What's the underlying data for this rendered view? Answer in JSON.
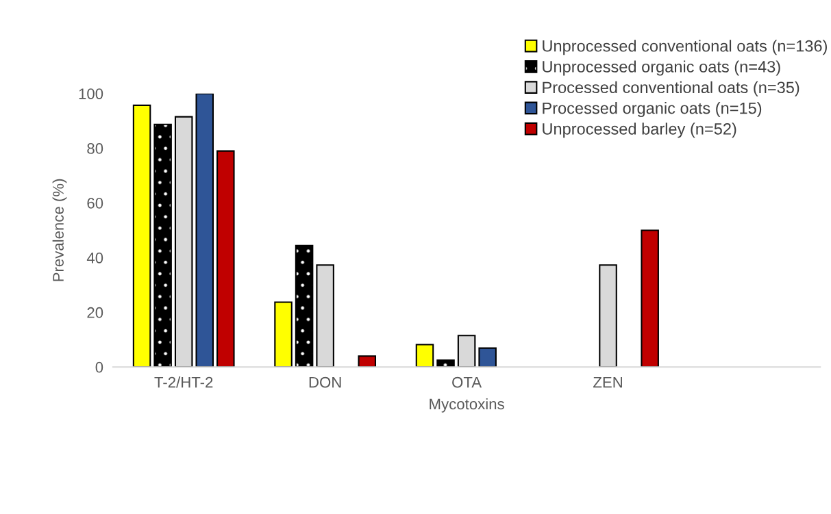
{
  "chart_data": {
    "type": "bar",
    "xlabel": "Mycotoxins",
    "ylabel": "Prevalence (%)",
    "categories": [
      "T-2/HT-2",
      "DON",
      "OTA",
      "ZEN",
      null
    ],
    "series": [
      {
        "name": "Unprocessed conventional oats (n=136)",
        "color": "#ffff00",
        "values": [
          95.7,
          23.7,
          8.2,
          null,
          null
        ]
      },
      {
        "name": "Unprocessed organic oats (n=43)",
        "color": "#000000",
        "values": [
          88.7,
          44.4,
          2.5,
          null,
          null
        ]
      },
      {
        "name": "Processed conventional oats (n=35)",
        "color": "#d9d9d9",
        "values": [
          91.5,
          37.3,
          11.5,
          37.3,
          null
        ]
      },
      {
        "name": "Processed organic oats (n=15)",
        "color": "#2f5597",
        "values": [
          100,
          null,
          6.9,
          null,
          null
        ]
      },
      {
        "name": "Unprocessed barley (n=52)",
        "color": "#c00000",
        "values": [
          79.0,
          4.0,
          null,
          50.0,
          null
        ]
      }
    ],
    "ylim": [
      0,
      100
    ],
    "yticks": [
      0,
      20,
      40,
      60,
      80,
      100
    ],
    "grid": false,
    "legend": "top right"
  }
}
